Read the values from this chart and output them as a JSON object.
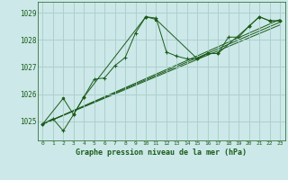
{
  "title": "Graphe pression niveau de la mer (hPa)",
  "bg_color": "#cce8e8",
  "line_color": "#1a5c1a",
  "grid_color": "#aacccc",
  "xlim": [
    -0.5,
    23.5
  ],
  "ylim": [
    1024.3,
    1029.4
  ],
  "yticks": [
    1025,
    1026,
    1027,
    1028,
    1029
  ],
  "xticks": [
    0,
    1,
    2,
    3,
    4,
    5,
    6,
    7,
    8,
    9,
    10,
    11,
    12,
    13,
    14,
    15,
    16,
    17,
    18,
    19,
    20,
    21,
    22,
    23
  ],
  "series1_x": [
    0,
    1,
    2,
    3,
    4,
    5,
    6,
    7,
    8,
    9,
    10,
    11,
    12,
    13,
    14,
    15,
    16,
    17,
    18,
    19,
    20,
    21,
    22,
    23
  ],
  "series1_y": [
    1024.9,
    1025.1,
    1024.65,
    1025.25,
    1025.9,
    1026.55,
    1026.6,
    1027.05,
    1027.35,
    1028.25,
    1028.85,
    1028.8,
    1027.55,
    1027.4,
    1027.3,
    1027.3,
    1027.5,
    1027.5,
    1028.1,
    1028.1,
    1028.5,
    1028.85,
    1028.7,
    1028.7
  ],
  "series2_x": [
    0,
    2,
    3,
    4,
    10,
    11,
    15,
    16,
    17,
    20,
    21,
    22,
    23
  ],
  "series2_y": [
    1024.9,
    1025.85,
    1025.25,
    1025.9,
    1028.85,
    1028.75,
    1027.3,
    1027.5,
    1027.5,
    1028.5,
    1028.85,
    1028.7,
    1028.7
  ],
  "trendlines": [
    {
      "x": [
        0,
        23
      ],
      "y": [
        1024.9,
        1028.75
      ]
    },
    {
      "x": [
        0,
        23
      ],
      "y": [
        1024.9,
        1028.65
      ]
    },
    {
      "x": [
        0,
        23
      ],
      "y": [
        1024.9,
        1028.55
      ]
    }
  ]
}
